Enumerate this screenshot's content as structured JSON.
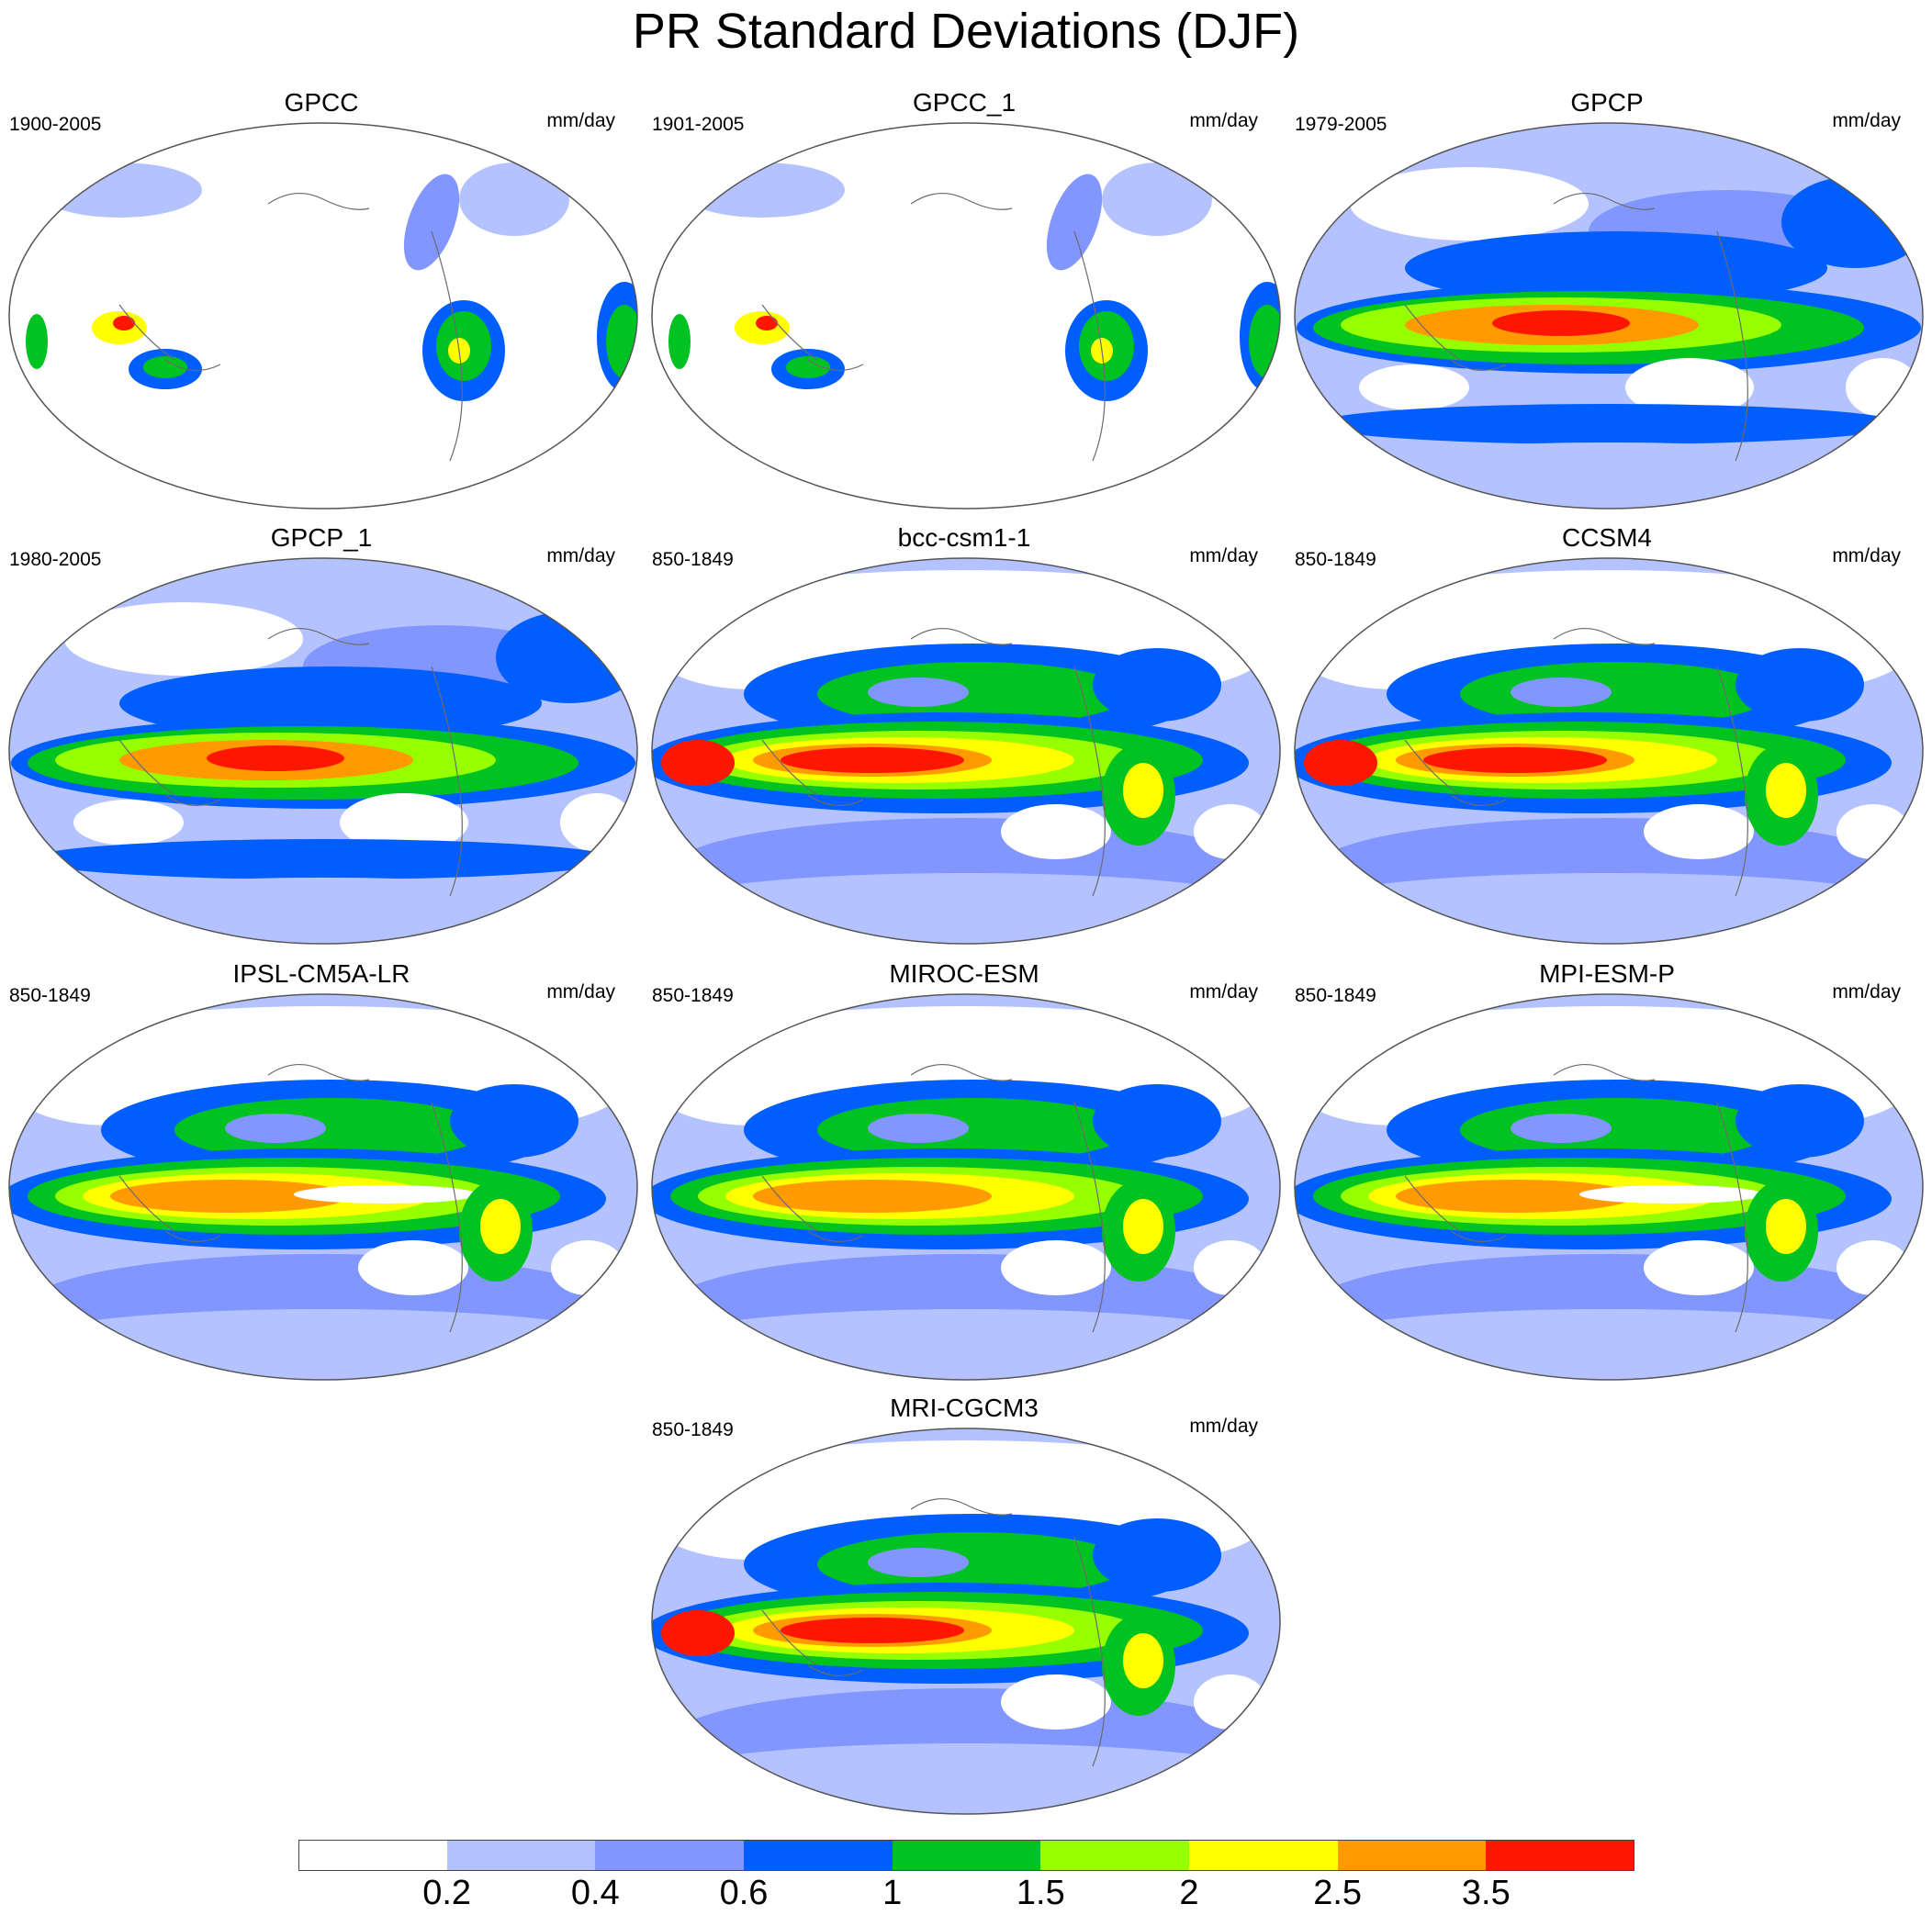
{
  "title": "PR Standard Deviations (DJF)",
  "units": "mm/day",
  "panels": [
    {
      "name": "GPCC",
      "period": "1900-2005",
      "kind": "obs"
    },
    {
      "name": "GPCC_1",
      "period": "1901-2005",
      "kind": "obs"
    },
    {
      "name": "GPCP",
      "period": "1979-2005",
      "kind": "sat"
    },
    {
      "name": "GPCP_1",
      "period": "1980-2005",
      "kind": "sat"
    },
    {
      "name": "bcc-csm1-1",
      "period": "850-1849",
      "kind": "model"
    },
    {
      "name": "CCSM4",
      "period": "850-1849",
      "kind": "model"
    },
    {
      "name": "IPSL-CM5A-LR",
      "period": "850-1849",
      "kind": "model"
    },
    {
      "name": "MIROC-ESM",
      "period": "850-1849",
      "kind": "model"
    },
    {
      "name": "MPI-ESM-P",
      "period": "850-1849",
      "kind": "model"
    },
    {
      "name": "MRI-CGCM3",
      "period": "850-1849",
      "kind": "model"
    }
  ],
  "colorbar": {
    "labels": [
      "0.2",
      "0.4",
      "0.6",
      "1",
      "1.5",
      "2",
      "2.5",
      "3.5"
    ],
    "colors": [
      "#ffffff",
      "#b4c3ff",
      "#8296ff",
      "#005eff",
      "#00c221",
      "#96ff00",
      "#ffff00",
      "#ff9a00",
      "#ff1600"
    ]
  }
}
